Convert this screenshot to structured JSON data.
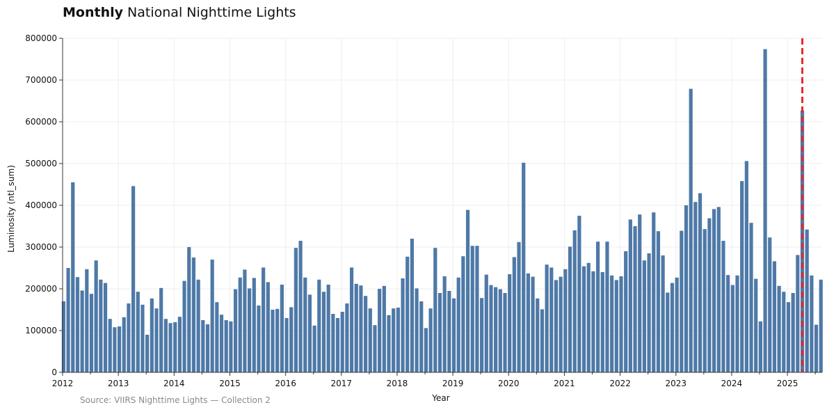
{
  "title_bold": "Monthly",
  "title_rest": "National Nighttime Lights",
  "source": "Source: VIIRS Nighttime Lights — Collection 2",
  "colors": {
    "bar": "#4e79a7",
    "marker": "#e8282b",
    "grid": "#eeeeee"
  },
  "chart_data": {
    "type": "bar",
    "xlabel": "Year",
    "ylabel": "Luminosity (ntl_sum)",
    "ylim": [
      0,
      800000
    ],
    "yticks": [
      0,
      100000,
      200000,
      300000,
      400000,
      500000,
      600000,
      700000,
      800000
    ],
    "ytick_labels": [
      "0",
      "100000",
      "200000",
      "300000",
      "400000",
      "500000",
      "600000",
      "700000",
      "800000"
    ],
    "xticks": [
      "2012",
      "2013",
      "2014",
      "2015",
      "2016",
      "2017",
      "2018",
      "2019",
      "2020",
      "2021",
      "2022",
      "2023",
      "2024",
      "2025"
    ],
    "grid": true,
    "start": "2012-01",
    "marker_line": "2025-04",
    "values": [
      170000,
      250000,
      455000,
      228000,
      196000,
      247000,
      188000,
      268000,
      222000,
      214000,
      128000,
      108000,
      110000,
      132000,
      165000,
      446000,
      193000,
      162000,
      90000,
      177000,
      153000,
      202000,
      128000,
      118000,
      120000,
      133000,
      219000,
      300000,
      275000,
      222000,
      125000,
      115000,
      270000,
      168000,
      138000,
      125000,
      122000,
      199000,
      227000,
      246000,
      201000,
      226000,
      160000,
      251000,
      216000,
      150000,
      152000,
      210000,
      130000,
      156000,
      298000,
      315000,
      227000,
      186000,
      112000,
      222000,
      193000,
      210000,
      140000,
      130000,
      145000,
      165000,
      251000,
      212000,
      208000,
      183000,
      153000,
      113000,
      200000,
      207000,
      137000,
      153000,
      155000,
      225000,
      277000,
      320000,
      201000,
      170000,
      106000,
      153000,
      298000,
      190000,
      230000,
      195000,
      177000,
      227000,
      278000,
      389000,
      303000,
      303000,
      178000,
      234000,
      209000,
      204000,
      199000,
      190000,
      235000,
      276000,
      312000,
      502000,
      237000,
      229000,
      177000,
      151000,
      258000,
      251000,
      221000,
      229000,
      247000,
      301000,
      340000,
      375000,
      254000,
      262000,
      242000,
      313000,
      240000,
      313000,
      232000,
      221000,
      230000,
      290000,
      366000,
      350000,
      378000,
      268000,
      285000,
      383000,
      338000,
      280000,
      191000,
      214000,
      227000,
      339000,
      400000,
      679000,
      408000,
      429000,
      343000,
      369000,
      391000,
      396000,
      315000,
      233000,
      209000,
      232000,
      458000,
      506000,
      358000,
      224000,
      122000,
      774000,
      323000,
      266000,
      207000,
      193000,
      168000,
      190000,
      281000,
      627000,
      342000,
      232000,
      114000,
      222000
    ]
  }
}
